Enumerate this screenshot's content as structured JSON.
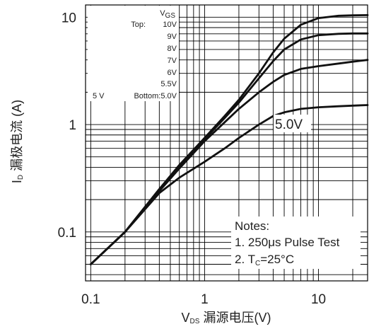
{
  "chart_data": {
    "type": "line",
    "x_scale": "log",
    "y_scale": "log",
    "xlim": [
      0.09,
      27
    ],
    "ylim": [
      0.035,
      13
    ],
    "grid": true,
    "xlabel": {
      "main": "V",
      "sub": "DS",
      "rest": " 漏源电压(V)"
    },
    "ylabel": {
      "main": "I",
      "sub": "D",
      "rest": " 漏极电流 (A)"
    },
    "x_ticks": [
      {
        "value": 0.1,
        "label": "0.1"
      },
      {
        "value": 1,
        "label": "1"
      },
      {
        "value": 10,
        "label": "10"
      }
    ],
    "y_ticks": [
      {
        "value": 0.1,
        "label": "0.1"
      },
      {
        "value": 1,
        "label": "1"
      },
      {
        "value": 10,
        "label": "10"
      }
    ],
    "legend": {
      "header": {
        "main": "V",
        "sub": "GS"
      },
      "top_label": "Top:",
      "bottom_label": "Bottom:5.0V",
      "bottom_prefix": "5 V",
      "entries": [
        "10V",
        "9V",
        "8V",
        "7V",
        "6V",
        "5.5V"
      ]
    },
    "curve_label": "5.0V",
    "notes": {
      "title": "Notes:",
      "line1": "1. 250μs Pulse Test",
      "line2_prefix": "2. T",
      "line2_sub": "C",
      "line2_suffix": "=25°C"
    },
    "series": [
      {
        "x": [
          0.1,
          0.2,
          0.4,
          0.6,
          1,
          1.5,
          2,
          3,
          4,
          5,
          7,
          10,
          15,
          20,
          27
        ],
        "y": [
          0.05,
          0.1,
          0.25,
          0.42,
          0.75,
          1.2,
          1.7,
          3.0,
          4.7,
          6.3,
          8.5,
          9.8,
          10.3,
          10.4,
          10.45
        ]
      },
      {
        "x": [
          0.1,
          0.2,
          0.4,
          0.6,
          1,
          1.5,
          2,
          3,
          4,
          5,
          7,
          10,
          15,
          20,
          27
        ],
        "y": [
          0.05,
          0.1,
          0.25,
          0.41,
          0.73,
          1.15,
          1.6,
          2.7,
          3.9,
          5.0,
          6.2,
          6.8,
          7.0,
          7.05,
          7.05
        ]
      },
      {
        "x": [
          0.1,
          0.2,
          0.4,
          0.6,
          1,
          1.5,
          2,
          3,
          4,
          5,
          7,
          10,
          15,
          20,
          27
        ],
        "y": [
          0.05,
          0.1,
          0.24,
          0.39,
          0.7,
          1.05,
          1.4,
          2.0,
          2.5,
          2.9,
          3.3,
          3.5,
          3.7,
          3.85,
          4.0
        ]
      },
      {
        "x": [
          0.1,
          0.2,
          0.4,
          0.6,
          1,
          1.5,
          2,
          3,
          4,
          5,
          7,
          10,
          15,
          20,
          27
        ],
        "y": [
          0.05,
          0.1,
          0.23,
          0.32,
          0.45,
          0.6,
          0.75,
          1.0,
          1.2,
          1.3,
          1.4,
          1.45,
          1.48,
          1.5,
          1.52
        ]
      }
    ]
  }
}
